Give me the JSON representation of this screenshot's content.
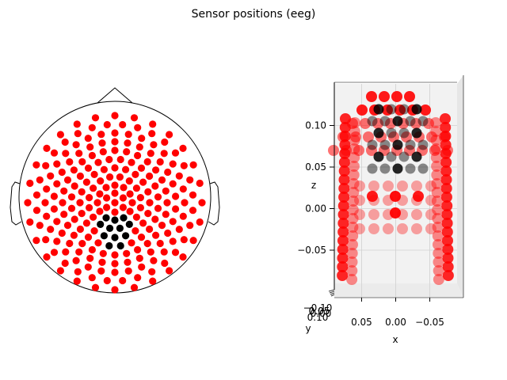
{
  "title": "Sensor positions (eeg)",
  "colors": {
    "selected": "#000000",
    "unselected": "#ff0000"
  },
  "chart_data": [
    {
      "type": "scatter",
      "kind": "topomap-2d",
      "title": "",
      "description_series": [
        {
          "name": "",
          "color": "#ff0000",
          "count": 220
        },
        {
          "name": "",
          "color": "#000000",
          "count": 36
        }
      ]
    },
    {
      "type": "scatter",
      "kind": "3d",
      "xlabel": "x",
      "ylabel": "y",
      "zlabel": "z",
      "x_ticks": [
        "0.05",
        "0.00",
        "−0.05"
      ],
      "z_ticks": [
        "0.10",
        "0.05",
        "0.00",
        "−0.05"
      ],
      "y_ticks": [
        "−0.10",
        "0.05",
        "0.00",
        "0.05",
        "0.10"
      ],
      "xlim": [
        0.09,
        -0.09
      ],
      "zlim": [
        -0.09,
        0.15
      ]
    }
  ]
}
